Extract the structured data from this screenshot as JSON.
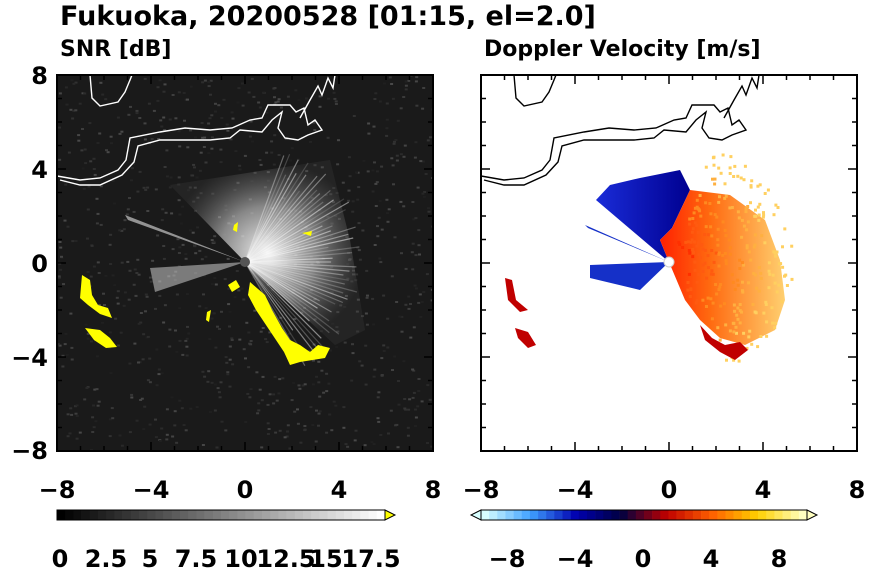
{
  "title": "Fukuoka, 20200528 [01:15, el=2.0]",
  "chart_data": [
    {
      "type": "heatmap",
      "title": "SNR [dB]",
      "xlim": [
        -8,
        8
      ],
      "ylim": [
        -8,
        8
      ],
      "x_ticks": [
        "−8",
        "−4",
        "0",
        "4",
        "8"
      ],
      "y_ticks": [
        "8",
        "4",
        "0",
        "−4",
        "−8"
      ],
      "colorbar": {
        "min": 0,
        "max": 20,
        "extend": "max",
        "tick_values": [
          0,
          2.5,
          5,
          7.5,
          10,
          12.5,
          15,
          17.5
        ],
        "tick_labels": [
          "0",
          "2.5",
          "5",
          "7.5",
          "10",
          "12.5",
          "15",
          "17.5"
        ],
        "colors": [
          "#000000",
          "#ffffff",
          "#ffff00"
        ]
      }
    },
    {
      "type": "heatmap",
      "title": "Doppler Velocity [m/s]",
      "xlim": [
        -8,
        8
      ],
      "ylim": [
        -8,
        8
      ],
      "x_ticks": [
        "−8",
        "−4",
        "0",
        "4",
        "8"
      ],
      "y_ticks": [],
      "colorbar": {
        "min": -10,
        "max": 10,
        "extend": "both",
        "tick_values": [
          -8,
          -4,
          0,
          4,
          8
        ],
        "tick_labels": [
          "−8",
          "−4",
          "0",
          "4",
          "8"
        ],
        "colors": [
          "#d8ffff",
          "#3fa0ff",
          "#0000b0",
          "#000040",
          "#c00000",
          "#ff6000",
          "#ffd000",
          "#ffffc0"
        ]
      }
    }
  ]
}
